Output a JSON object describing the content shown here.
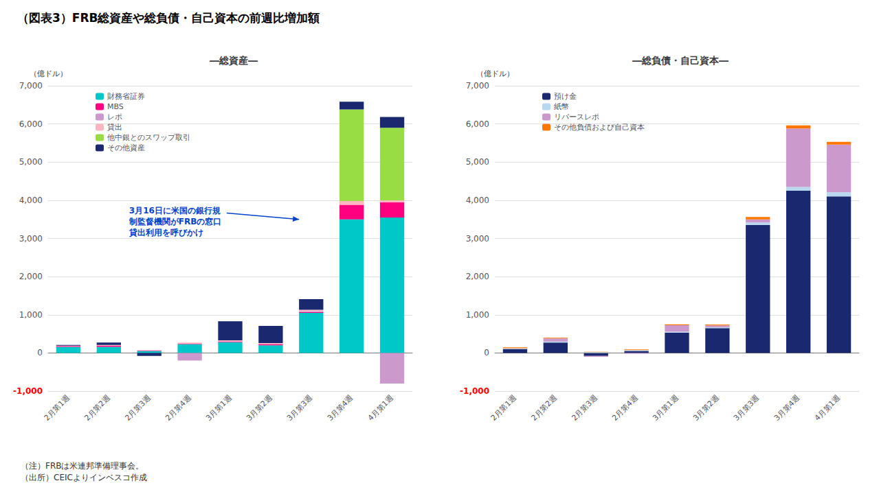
{
  "chart_data": [
    {
      "type": "bar",
      "stacked": true,
      "title": "（図表3）FRB総資産や総負債・自己資本の前週比増加額",
      "subtitle": "―総資産―",
      "ylabel": "（億ドル）",
      "categories": [
        "2月第1週",
        "2月第2週",
        "2月第3週",
        "2月第4週",
        "3月第1週",
        "3月第2週",
        "3月第3週",
        "3月第4週",
        "4月第1週"
      ],
      "series": [
        {
          "name": "財務省証券",
          "color": "#00C8C8",
          "values": [
            160,
            160,
            50,
            230,
            280,
            200,
            1050,
            3500,
            3550
          ]
        },
        {
          "name": "MBS",
          "color": "#FF0080",
          "values": [
            20,
            30,
            15,
            10,
            20,
            30,
            20,
            380,
            400
          ]
        },
        {
          "name": "レポ",
          "color": "#CC99CC",
          "values": [
            0,
            0,
            0,
            -200,
            0,
            0,
            30,
            0,
            -800
          ]
        },
        {
          "name": "貸出",
          "color": "#FFB6C1",
          "values": [
            10,
            20,
            5,
            30,
            30,
            30,
            30,
            100,
            50
          ]
        },
        {
          "name": "他中銀とのスワップ取引",
          "color": "#99DD44",
          "values": [
            0,
            0,
            0,
            0,
            0,
            0,
            0,
            2400,
            1900
          ]
        },
        {
          "name": "その他資産",
          "color": "#1A2870",
          "values": [
            20,
            60,
            -80,
            0,
            500,
            450,
            280,
            200,
            280
          ]
        }
      ],
      "ylim": [
        -1000,
        7000
      ],
      "yticks": [
        {
          "value": -1000,
          "label": "-1,000"
        },
        0,
        {
          "value": 1000,
          "label": "1,000"
        },
        {
          "value": 2000,
          "label": "2,000"
        },
        {
          "value": 3000,
          "label": "3,000"
        },
        {
          "value": 4000,
          "label": "4,000"
        },
        {
          "value": 5000,
          "label": "5,000"
        },
        {
          "value": 6000,
          "label": "6,000"
        },
        {
          "value": 7000,
          "label": "7,000"
        }
      ],
      "grid": true,
      "legend": "upper left",
      "annotations": [
        "3月16日に米国の銀行規\n制監督機関がFRBの窓口\n貸出利用を呼びかけ"
      ],
      "note": "（注）FRBは米連邦準備理事会。\n（出所）CEICよりインベスコ作成"
    },
    {
      "type": "bar",
      "stacked": true,
      "subtitle": "―総負債・自己資本―",
      "ylabel": "（億ドル）",
      "categories": [
        "2月第1週",
        "2月第2週",
        "2月第3週",
        "2月第4週",
        "3月第1週",
        "3月第2週",
        "3月第3週",
        "3月第4週",
        "4月第1週"
      ],
      "series": [
        {
          "name": "預け金",
          "color": "#1A2870",
          "values": [
            100,
            270,
            -80,
            50,
            530,
            650,
            3350,
            4250,
            4100
          ]
        },
        {
          "name": "紙幣",
          "color": "#B8D8F0",
          "values": [
            20,
            30,
            20,
            25,
            25,
            20,
            70,
            100,
            110
          ]
        },
        {
          "name": "リバースレポ",
          "color": "#CC99CC",
          "values": [
            5,
            80,
            -20,
            -20,
            170,
            50,
            80,
            1530,
            1250
          ]
        },
        {
          "name": "その他負債および自己資本",
          "color": "#FF7700",
          "values": [
            20,
            20,
            10,
            15,
            25,
            25,
            60,
            80,
            70
          ]
        }
      ],
      "ylim": [
        -1000,
        7000
      ],
      "yticks": [
        {
          "value": -1000,
          "label": "-1,000"
        },
        0,
        {
          "value": 1000,
          "label": "1,000"
        },
        {
          "value": 2000,
          "label": "2,000"
        },
        {
          "value": 3000,
          "label": "3,000"
        },
        {
          "value": 4000,
          "label": "4,000"
        },
        {
          "value": 5000,
          "label": "5,000"
        },
        {
          "value": 6000,
          "label": "6,000"
        },
        {
          "value": 7000,
          "label": "7,000"
        }
      ],
      "grid": true,
      "legend": "upper left"
    }
  ]
}
